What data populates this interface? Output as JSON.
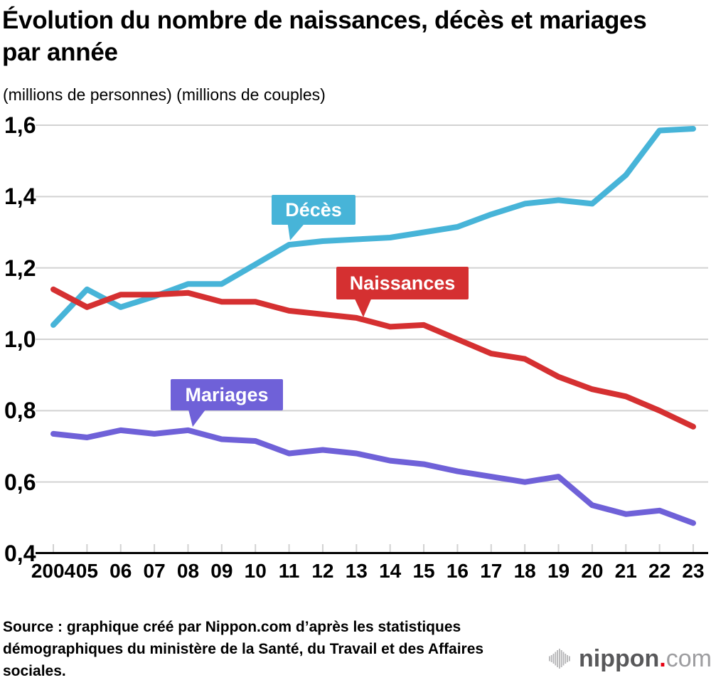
{
  "page": {
    "background": "#ffffff"
  },
  "header": {
    "title": "Évolution du nombre de naissances, décès et mariages par année",
    "subtitle": "(millions de personnes) (millions de couples)"
  },
  "chart_data": {
    "type": "line",
    "title": "Évolution du nombre de naissances, décès et mariages par année",
    "subtitle": "(millions de personnes) (millions de couples)",
    "x_labels": [
      "2004",
      "05",
      "06",
      "07",
      "08",
      "09",
      "10",
      "11",
      "12",
      "13",
      "14",
      "15",
      "16",
      "17",
      "18",
      "19",
      "20",
      "21",
      "22",
      "23"
    ],
    "ylim": [
      0.4,
      1.6
    ],
    "y_ticks": [
      {
        "label": "1,6",
        "value": 1.6
      },
      {
        "label": "1,4",
        "value": 1.4
      },
      {
        "label": "1,2",
        "value": 1.2
      },
      {
        "label": "1,0",
        "value": 1.0
      },
      {
        "label": "0,8",
        "value": 0.8
      },
      {
        "label": "0,6",
        "value": 0.6
      },
      {
        "label": "0,4",
        "value": 0.4
      }
    ],
    "grid_on": true,
    "grid_color": "#d2d2d2",
    "axis_color": "#000000",
    "legend_position": "callouts-on-lines",
    "series": [
      {
        "name": "Décès",
        "color": "#47b4d8",
        "values": [
          1.04,
          1.14,
          1.09,
          1.12,
          1.155,
          1.155,
          1.21,
          1.265,
          1.275,
          1.28,
          1.285,
          1.3,
          1.315,
          1.35,
          1.38,
          1.39,
          1.38,
          1.46,
          1.585,
          1.59
        ]
      },
      {
        "name": "Naissances",
        "color": "#d53031",
        "values": [
          1.14,
          1.09,
          1.125,
          1.125,
          1.13,
          1.105,
          1.105,
          1.08,
          1.07,
          1.06,
          1.035,
          1.04,
          1.0,
          0.96,
          0.945,
          0.895,
          0.86,
          0.84,
          0.8,
          0.755
        ]
      },
      {
        "name": "Mariages",
        "color": "#6f61d8",
        "values": [
          0.735,
          0.725,
          0.745,
          0.735,
          0.745,
          0.72,
          0.715,
          0.68,
          0.69,
          0.68,
          0.66,
          0.65,
          0.63,
          0.615,
          0.6,
          0.615,
          0.535,
          0.51,
          0.52,
          0.485
        ]
      }
    ]
  },
  "source": {
    "text": "Source : graphique créé par Nippon.com d’après les statistiques démographiques du ministère de la Santé, du Travail et des Affaires sociales."
  },
  "logo": {
    "brand_bold": "nippon",
    "dot": ".",
    "brand_light": "com",
    "bars_color": "#b5b5b7",
    "bold_color": "#58585a",
    "light_color": "#9d9da0",
    "dot_color": "#e60012"
  }
}
